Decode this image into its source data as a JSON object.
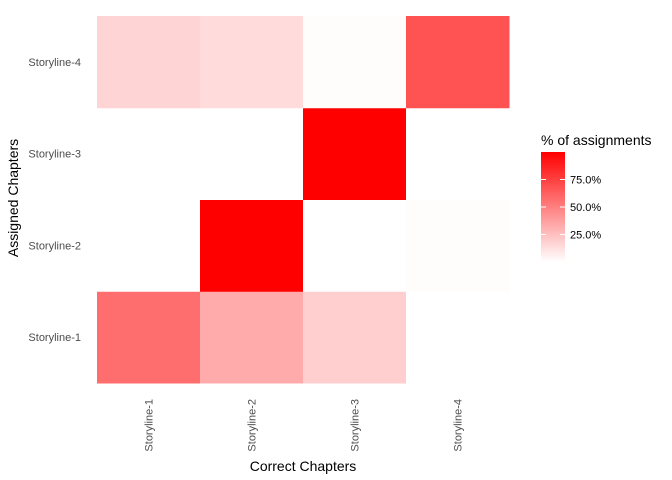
{
  "chart_data": {
    "type": "heatmap",
    "title": "",
    "xlabel": "Correct Chapters",
    "ylabel": "Assigned Chapters",
    "x_categories": [
      "Storyline-1",
      "Storyline-2",
      "Storyline-3",
      "Storyline-4"
    ],
    "y_categories": [
      "Storyline-1",
      "Storyline-2",
      "Storyline-3",
      "Storyline-4"
    ],
    "cells": [
      {
        "x": "Storyline-1",
        "y": "Storyline-1",
        "value": 57
      },
      {
        "x": "Storyline-2",
        "y": "Storyline-1",
        "value": 33
      },
      {
        "x": "Storyline-3",
        "y": "Storyline-1",
        "value": 19
      },
      {
        "x": "Storyline-4",
        "y": "Storyline-1",
        "value": 0
      },
      {
        "x": "Storyline-1",
        "y": "Storyline-2",
        "value": 0
      },
      {
        "x": "Storyline-2",
        "y": "Storyline-2",
        "value": 100
      },
      {
        "x": "Storyline-3",
        "y": "Storyline-2",
        "value": 0
      },
      {
        "x": "Storyline-4",
        "y": "Storyline-2",
        "value": 1
      },
      {
        "x": "Storyline-1",
        "y": "Storyline-3",
        "value": 0
      },
      {
        "x": "Storyline-2",
        "y": "Storyline-3",
        "value": 0
      },
      {
        "x": "Storyline-3",
        "y": "Storyline-3",
        "value": 100
      },
      {
        "x": "Storyline-4",
        "y": "Storyline-3",
        "value": 0
      },
      {
        "x": "Storyline-1",
        "y": "Storyline-4",
        "value": 17
      },
      {
        "x": "Storyline-2",
        "y": "Storyline-4",
        "value": 14
      },
      {
        "x": "Storyline-3",
        "y": "Storyline-4",
        "value": 1
      },
      {
        "x": "Storyline-4",
        "y": "Storyline-4",
        "value": 68
      }
    ],
    "legend": {
      "title": "% of assignments",
      "position": "right",
      "min": 0,
      "max": 100,
      "ticks": [
        {
          "value": 25,
          "label": "25.0%"
        },
        {
          "value": 50,
          "label": "50.0%"
        },
        {
          "value": 75,
          "label": "75.0%"
        }
      ]
    },
    "colors": {
      "low": "#ffffff",
      "high": "#ff0000"
    },
    "grid": false
  }
}
